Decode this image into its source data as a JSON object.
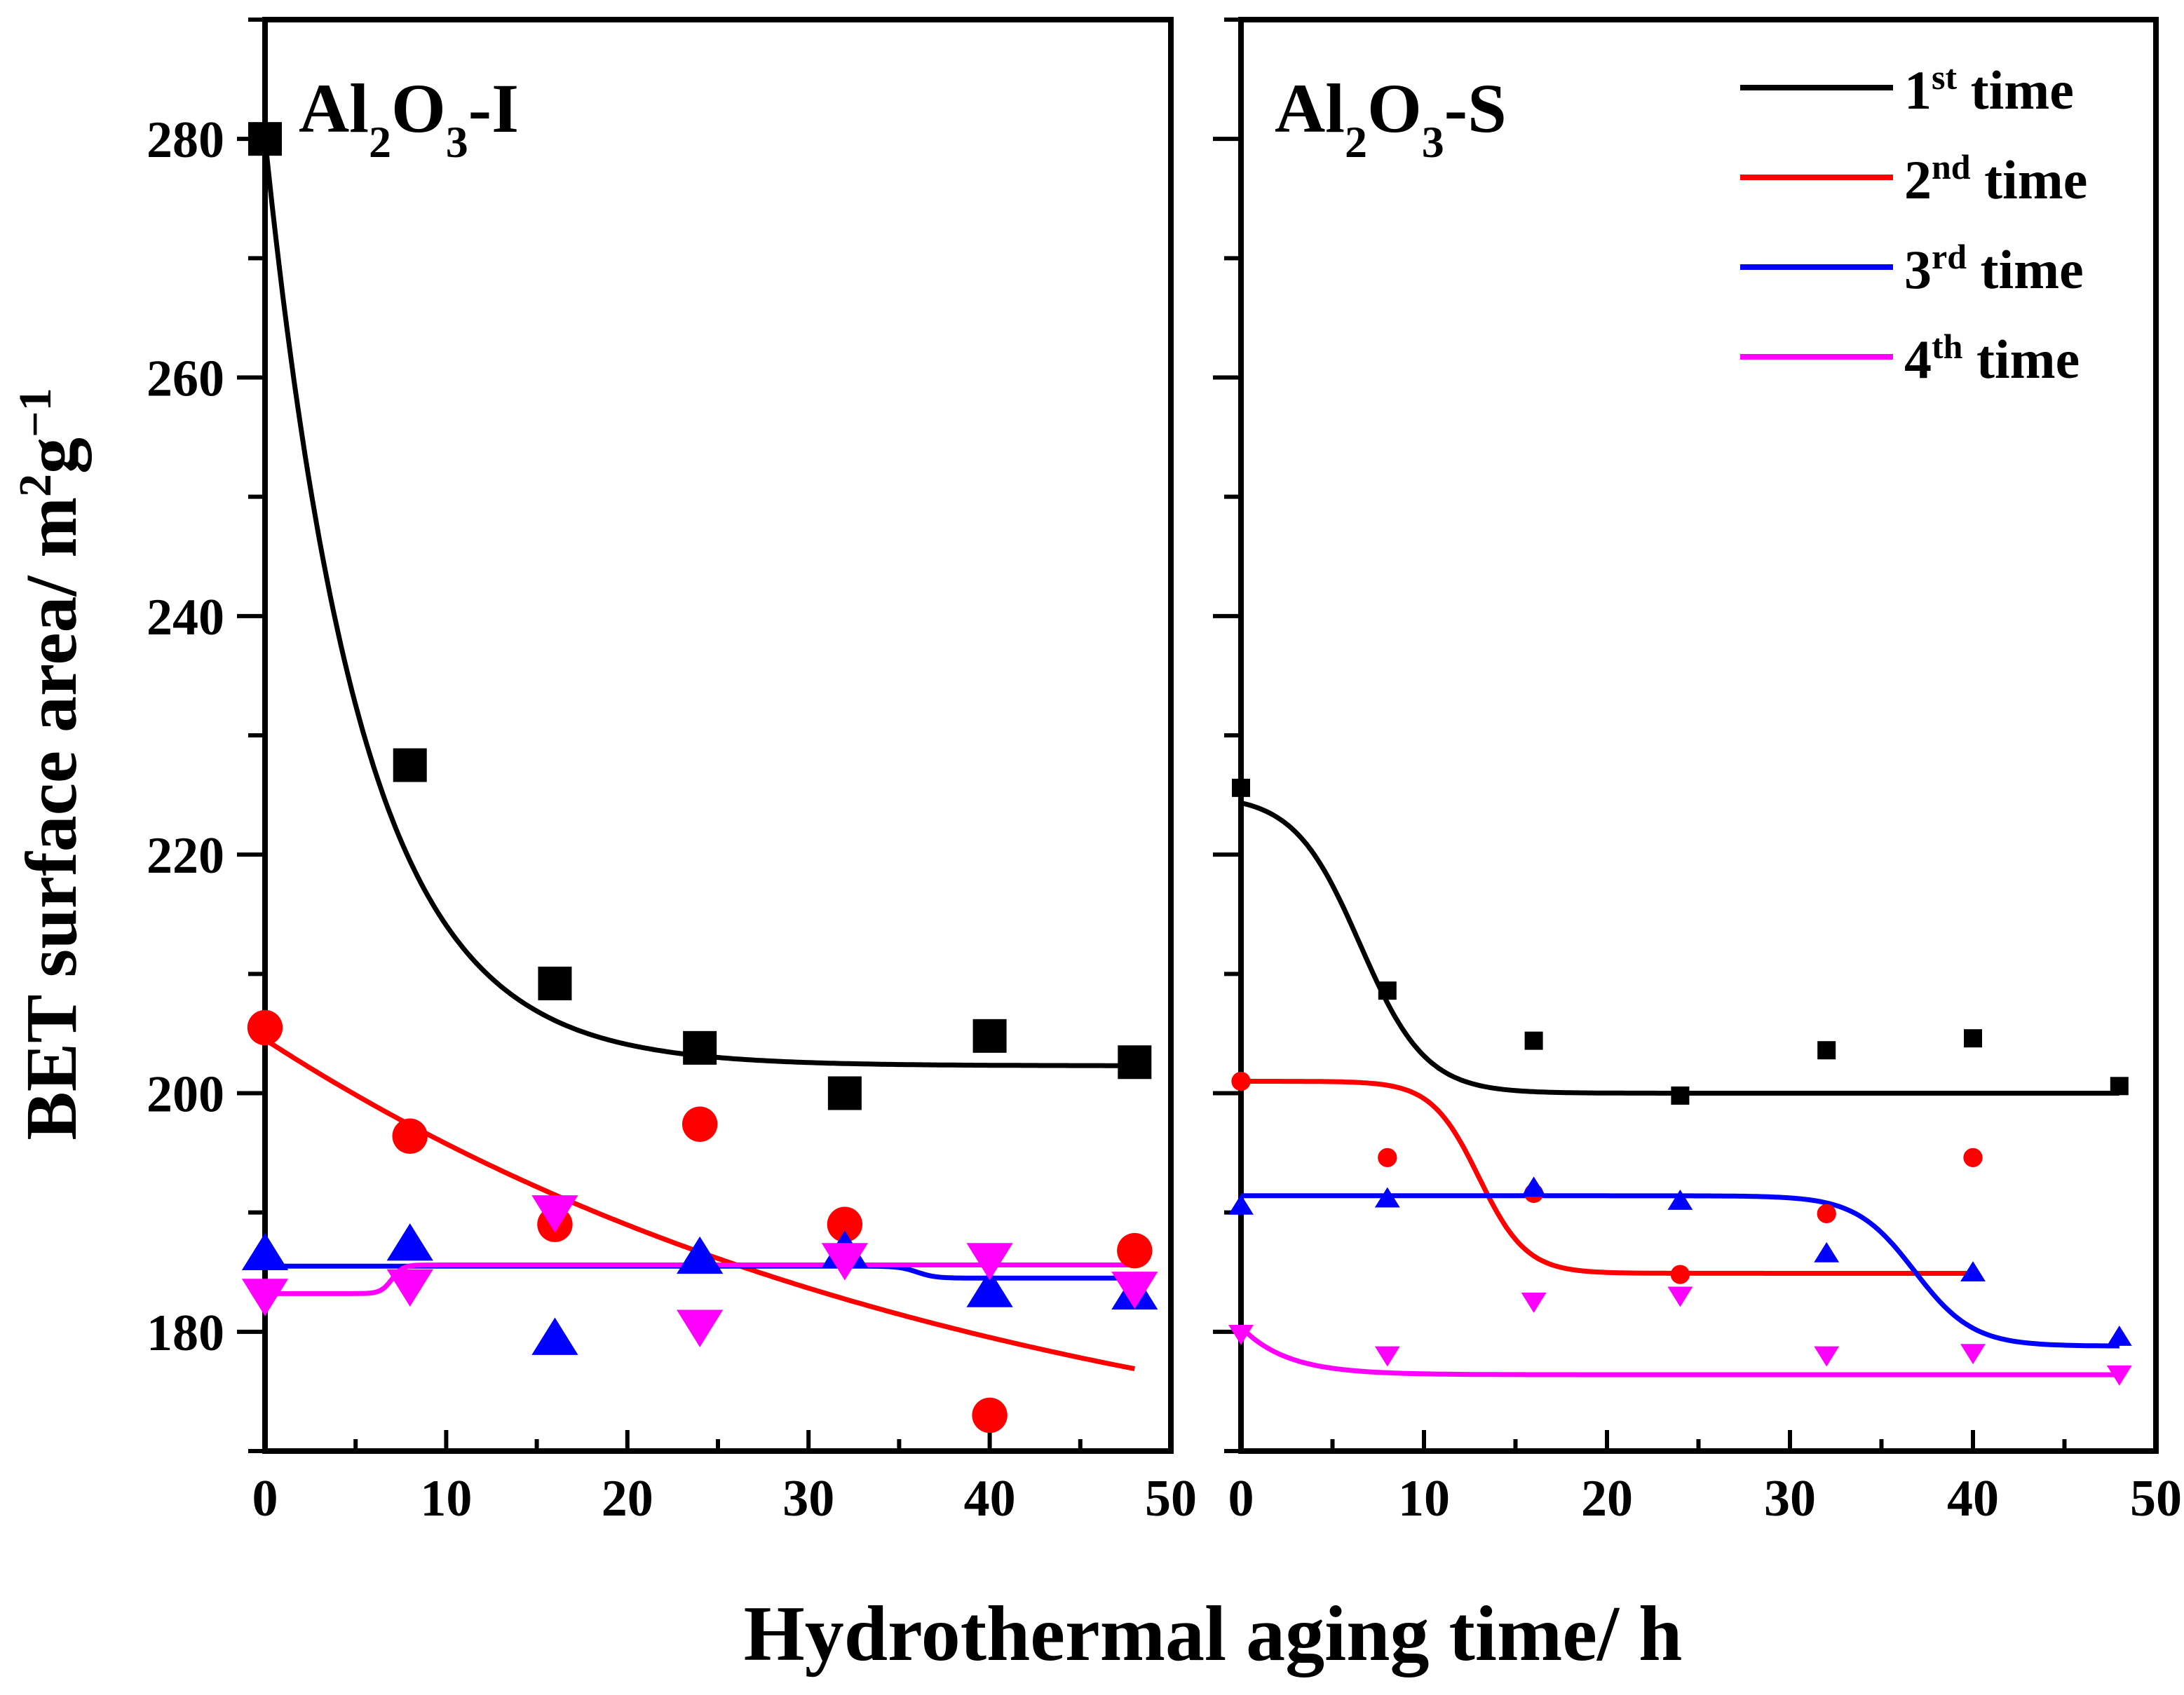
{
  "chart_data": [
    {
      "type": "scatter",
      "panel_title": {
        "base": "Al",
        "sub1": "2",
        "mid": "O",
        "sub2": "3",
        "suffix": "-I"
      },
      "xlim": [
        0,
        50
      ],
      "ylim": [
        170,
        290
      ],
      "x_ticks": [
        0,
        10,
        20,
        30,
        40,
        50
      ],
      "y_ticks": [
        180,
        200,
        220,
        240,
        260,
        280
      ],
      "y_tick_labels": [
        "180",
        "200",
        "220",
        "240",
        "260",
        "280"
      ],
      "series": [
        {
          "color": "#000000",
          "marker": "square",
          "x": [
            0,
            8,
            16,
            24,
            32,
            40,
            48
          ],
          "y": [
            280,
            227.5,
            209.2,
            203.8,
            200,
            204.8,
            202.6
          ]
        },
        {
          "color": "#ff0000",
          "marker": "circle",
          "x": [
            0,
            8,
            16,
            24,
            32,
            40,
            48
          ],
          "y": [
            205.5,
            196.4,
            189,
            197.4,
            189,
            173,
            186.8
          ]
        },
        {
          "color": "#0000ff",
          "marker": "triangle-up",
          "x": [
            0,
            8,
            16,
            24,
            32,
            40,
            48
          ],
          "y": [
            186.6,
            187.4,
            179.5,
            186.3,
            186.8,
            183.5,
            183.3
          ]
        },
        {
          "color": "#ff00ff",
          "marker": "triangle-down",
          "x": [
            0,
            8,
            16,
            24,
            32,
            40,
            48
          ],
          "y": [
            183,
            183.8,
            190,
            180.4,
            186,
            186,
            183.6
          ]
        }
      ],
      "fits": [
        {
          "color": "#000000",
          "model": "exp",
          "y0": 202.3,
          "A": 77.7,
          "t": 5.3,
          "xmax": 48
        },
        {
          "color": "#ff0000",
          "model": "exp",
          "y0": 165,
          "A": 39.5,
          "t": 40,
          "xmax": 48
        },
        {
          "color": "#0000ff",
          "model": "step",
          "y1": 185.5,
          "y2": 184.5,
          "x0": 36,
          "dx": 0.5,
          "xmax": 48
        },
        {
          "color": "#ff00ff",
          "model": "step",
          "y1": 183.2,
          "y2": 185.6,
          "x0": 7,
          "dx": 0.3,
          "xmax": 48
        }
      ]
    },
    {
      "type": "scatter",
      "panel_title": {
        "base": "Al",
        "sub1": "2",
        "mid": "O",
        "sub2": "3",
        "suffix": "-S"
      },
      "xlim": [
        0,
        50
      ],
      "ylim": [
        170,
        290
      ],
      "x_ticks": [
        0,
        10,
        20,
        30,
        40,
        50
      ],
      "y_ticks": [
        180,
        200,
        220,
        240,
        260,
        280
      ],
      "series": [
        {
          "color": "#000000",
          "marker": "square",
          "x": [
            0,
            8,
            16,
            24,
            32,
            40,
            48
          ],
          "y": [
            225.6,
            208.6,
            204.4,
            199.8,
            203.6,
            204.6,
            200.6
          ]
        },
        {
          "color": "#ff0000",
          "marker": "circle",
          "x": [
            0,
            8,
            16,
            24,
            32,
            40
          ],
          "y": [
            201,
            194.6,
            191.6,
            184.8,
            189.9,
            194.6
          ]
        },
        {
          "color": "#0000ff",
          "marker": "triangle-up",
          "x": [
            0,
            8,
            16,
            24,
            32,
            40,
            48
          ],
          "y": [
            190.6,
            191.2,
            192.1,
            191,
            186.6,
            185,
            179.6
          ]
        },
        {
          "color": "#ff00ff",
          "marker": "triangle-down",
          "x": [
            0,
            8,
            16,
            24,
            32,
            40,
            48
          ],
          "y": [
            179.8,
            178,
            182.5,
            183,
            178,
            178.2,
            176.4
          ]
        }
      ],
      "fits": [
        {
          "color": "#000000",
          "model": "step",
          "y1": 225,
          "y2": 200,
          "x0": 6.5,
          "dx": 1.8,
          "xmax": 48
        },
        {
          "color": "#ff0000",
          "model": "step",
          "y1": 201,
          "y2": 184.9,
          "x0": 13,
          "dx": 1.3,
          "xmax": 40
        },
        {
          "color": "#0000ff",
          "model": "step",
          "y1": 191.4,
          "y2": 178.8,
          "x0": 36.8,
          "dx": 1.6,
          "xmax": 48
        },
        {
          "color": "#ff00ff",
          "model": "exp",
          "y0": 176.4,
          "A": 4,
          "t": 2.5,
          "xmax": 48
        }
      ]
    }
  ],
  "y_axis_label": {
    "text": "BET surface area/ m",
    "sup1": "2",
    "mid": "g",
    "sup2": "−1"
  },
  "x_axis_label": "Hydrothermal aging time/ h",
  "legend": [
    {
      "num": "1",
      "sup": "st",
      "text": " time",
      "color": "#000000"
    },
    {
      "num": "2",
      "sup": "nd",
      "text": " time",
      "color": "#ff0000"
    },
    {
      "num": "3",
      "sup": "rd",
      "text": " time",
      "color": "#0000ff"
    },
    {
      "num": "4",
      "sup": "th",
      "text": " time",
      "color": "#ff00ff"
    }
  ]
}
